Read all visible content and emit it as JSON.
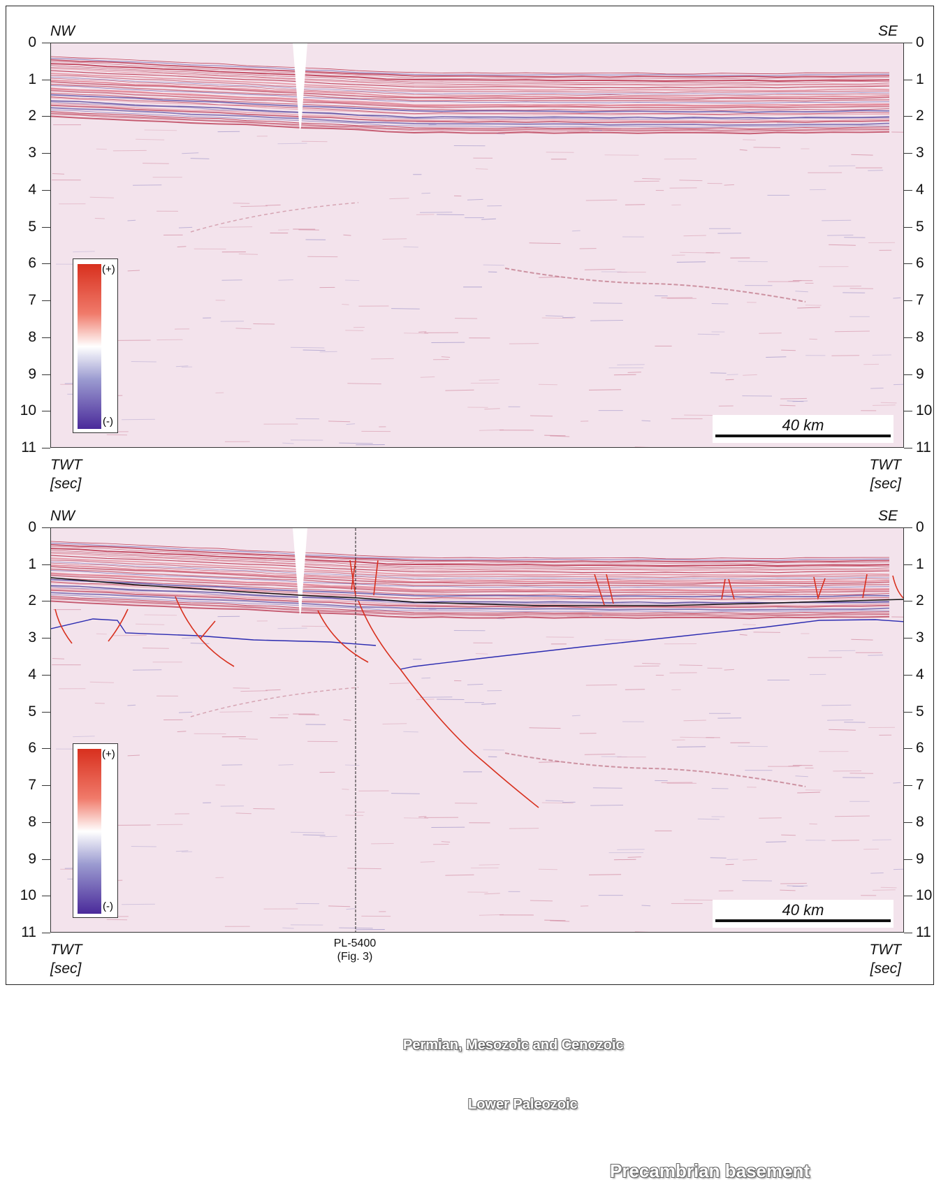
{
  "directions": {
    "left": "NW",
    "right": "SE"
  },
  "y_axis": {
    "ticks": [
      "0",
      "1",
      "2",
      "3",
      "4",
      "5",
      "6",
      "7",
      "8",
      "9",
      "10",
      "11"
    ],
    "label_line1": "TWT",
    "label_line2": "[sec]"
  },
  "amplitude_legend": {
    "positive": "(+)",
    "negative": "(-)",
    "colors": {
      "positive": "#d8301e",
      "zero": "#ffffff",
      "negative": "#4a2a9a"
    }
  },
  "scale_bar": {
    "label": "40 km"
  },
  "interpretation": {
    "units": [
      "Permian, Mesozoic and Cenozoic",
      "Lower Paleozoic",
      "Precambrian basement"
    ],
    "colors": {
      "faults": "#d8301e",
      "horizon_base_lower_paleozoic": "#2a2ab0",
      "horizon_top": "#111111"
    }
  },
  "tie_line": {
    "name": "PL-5400",
    "ref": "(Fig. 3)"
  }
}
